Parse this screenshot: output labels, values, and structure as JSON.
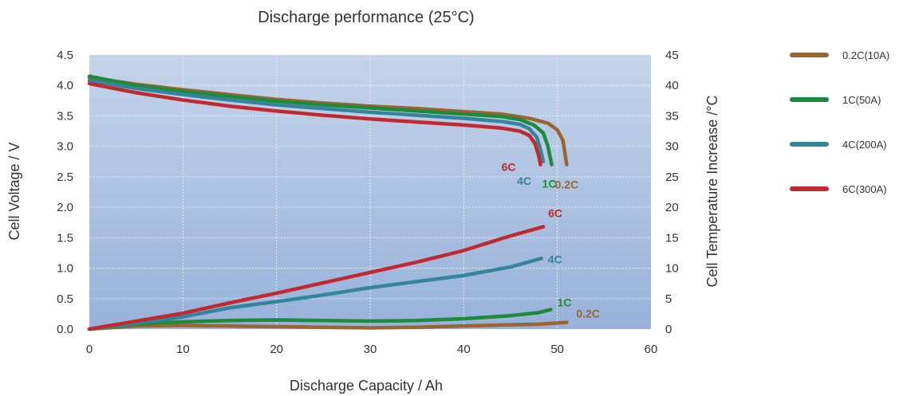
{
  "chart_data": {
    "type": "line",
    "title": "Discharge performance (25°C)",
    "xlabel": "Discharge Capacity / Ah",
    "ylabel_left": "Cell Voltage / V",
    "ylabel_right": "Cell Temperature Increase /°C",
    "xlim": [
      0,
      60
    ],
    "ylim_left": [
      0,
      4.5
    ],
    "ylim_right": [
      0,
      45
    ],
    "x_ticks": [
      "0",
      "10",
      "20",
      "30",
      "40",
      "50",
      "60"
    ],
    "y_left_ticks": [
      "0.0",
      "0.5",
      "1.0",
      "1.5",
      "2.0",
      "2.5",
      "3.0",
      "3.5",
      "4.0",
      "4.5"
    ],
    "y_right_ticks": [
      "0",
      "5",
      "10",
      "15",
      "20",
      "25",
      "30",
      "35",
      "40",
      "45"
    ],
    "grid": true,
    "legend_position": "right",
    "series": [
      {
        "name": "0.2C(10A)",
        "color": "#9a6433",
        "voltage": [
          [
            0,
            4.13
          ],
          [
            5,
            4.02
          ],
          [
            10,
            3.93
          ],
          [
            15,
            3.85
          ],
          [
            20,
            3.77
          ],
          [
            25,
            3.71
          ],
          [
            30,
            3.66
          ],
          [
            35,
            3.62
          ],
          [
            40,
            3.57
          ],
          [
            44,
            3.53
          ],
          [
            47,
            3.46
          ],
          [
            49,
            3.38
          ],
          [
            50,
            3.27
          ],
          [
            50.6,
            3.1
          ],
          [
            51,
            2.7
          ]
        ],
        "voltage_label": "0.2C",
        "temperature": [
          [
            0,
            0
          ],
          [
            5,
            0.5
          ],
          [
            10,
            0.6
          ],
          [
            15,
            0.5
          ],
          [
            20,
            0.4
          ],
          [
            25,
            0.3
          ],
          [
            30,
            0.2
          ],
          [
            35,
            0.3
          ],
          [
            40,
            0.5
          ],
          [
            45,
            0.7
          ],
          [
            48,
            0.8
          ],
          [
            51,
            1.1
          ]
        ],
        "temperature_label": "0.2C"
      },
      {
        "name": "1C(50A)",
        "color": "#1e8a3c",
        "voltage": [
          [
            0,
            4.15
          ],
          [
            5,
            4.0
          ],
          [
            10,
            3.9
          ],
          [
            15,
            3.82
          ],
          [
            20,
            3.74
          ],
          [
            25,
            3.68
          ],
          [
            30,
            3.63
          ],
          [
            35,
            3.58
          ],
          [
            40,
            3.53
          ],
          [
            44,
            3.49
          ],
          [
            46,
            3.44
          ],
          [
            47.5,
            3.35
          ],
          [
            48.5,
            3.22
          ],
          [
            49,
            3.0
          ],
          [
            49.4,
            2.7
          ]
        ],
        "voltage_label": "1C",
        "temperature": [
          [
            0,
            0
          ],
          [
            5,
            0.8
          ],
          [
            10,
            1.2
          ],
          [
            15,
            1.4
          ],
          [
            20,
            1.5
          ],
          [
            25,
            1.4
          ],
          [
            30,
            1.3
          ],
          [
            35,
            1.4
          ],
          [
            40,
            1.7
          ],
          [
            45,
            2.2
          ],
          [
            48,
            2.7
          ],
          [
            49.3,
            3.2
          ]
        ],
        "temperature_label": "1C"
      },
      {
        "name": "4C(200A)",
        "color": "#33849c",
        "voltage": [
          [
            0,
            4.08
          ],
          [
            5,
            3.95
          ],
          [
            10,
            3.85
          ],
          [
            15,
            3.76
          ],
          [
            20,
            3.68
          ],
          [
            25,
            3.62
          ],
          [
            30,
            3.56
          ],
          [
            35,
            3.51
          ],
          [
            40,
            3.46
          ],
          [
            44,
            3.41
          ],
          [
            46,
            3.36
          ],
          [
            47,
            3.29
          ],
          [
            47.8,
            3.15
          ],
          [
            48.2,
            2.95
          ],
          [
            48.5,
            2.75
          ]
        ],
        "voltage_label": "4C",
        "temperature": [
          [
            0,
            0
          ],
          [
            5,
            1.0
          ],
          [
            10,
            2.0
          ],
          [
            15,
            3.5
          ],
          [
            20,
            4.5
          ],
          [
            25,
            5.6
          ],
          [
            30,
            6.8
          ],
          [
            35,
            7.8
          ],
          [
            40,
            8.8
          ],
          [
            45,
            10.2
          ],
          [
            48.3,
            11.6
          ]
        ],
        "temperature_label": "4C"
      },
      {
        "name": "6C(300A)",
        "color": "#c02a2e",
        "voltage": [
          [
            0,
            4.03
          ],
          [
            5,
            3.88
          ],
          [
            10,
            3.76
          ],
          [
            15,
            3.66
          ],
          [
            20,
            3.58
          ],
          [
            25,
            3.51
          ],
          [
            30,
            3.45
          ],
          [
            35,
            3.4
          ],
          [
            40,
            3.35
          ],
          [
            44,
            3.3
          ],
          [
            46,
            3.25
          ],
          [
            47,
            3.18
          ],
          [
            47.6,
            3.05
          ],
          [
            48,
            2.85
          ],
          [
            48.2,
            2.7
          ]
        ],
        "voltage_label": "6C",
        "temperature": [
          [
            0,
            0
          ],
          [
            5,
            1.3
          ],
          [
            10,
            2.6
          ],
          [
            15,
            4.3
          ],
          [
            20,
            5.9
          ],
          [
            25,
            7.6
          ],
          [
            30,
            9.3
          ],
          [
            35,
            11.0
          ],
          [
            40,
            12.9
          ],
          [
            45,
            15.3
          ],
          [
            48.5,
            16.8
          ]
        ],
        "temperature_label": "6C"
      }
    ]
  }
}
